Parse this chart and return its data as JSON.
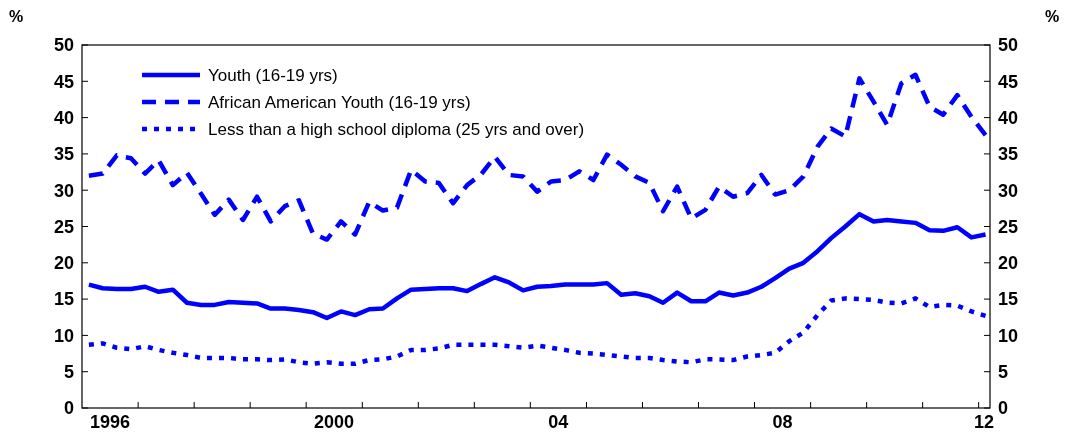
{
  "chart_data": {
    "type": "line",
    "x": [
      "1996-02-15",
      "1996-05-15",
      "1996-08-15",
      "1996-11-15",
      "1997-02-15",
      "1997-05-15",
      "1997-08-15",
      "1997-11-15",
      "1998-02-15",
      "1998-05-15",
      "1998-08-15",
      "1998-11-15",
      "1999-02-15",
      "1999-05-15",
      "1999-08-15",
      "1999-11-15",
      "2000-02-15",
      "2000-05-15",
      "2000-08-15",
      "2000-11-15",
      "2001-02-15",
      "2001-05-15",
      "2001-08-15",
      "2001-11-15",
      "2002-02-15",
      "2002-05-15",
      "2002-08-15",
      "2002-11-15",
      "2003-02-15",
      "2003-05-15",
      "2003-08-15",
      "2003-11-15",
      "2004-02-15",
      "2004-05-15",
      "2004-08-15",
      "2004-11-15",
      "2005-02-15",
      "2005-05-15",
      "2005-08-15",
      "2005-11-15",
      "2006-02-15",
      "2006-05-15",
      "2006-08-15",
      "2006-11-15",
      "2007-02-15",
      "2007-05-15",
      "2007-08-15",
      "2007-11-15",
      "2008-02-15",
      "2008-05-15",
      "2008-08-15",
      "2008-11-15",
      "2009-02-15",
      "2009-05-15",
      "2009-08-15",
      "2009-11-15",
      "2010-02-15",
      "2010-05-15",
      "2010-08-15",
      "2010-11-15",
      "2011-02-15",
      "2011-05-15",
      "2011-08-15",
      "2011-11-15",
      "2012-02-15"
    ],
    "series": [
      {
        "name": "Youth (16-19 yrs)",
        "color": "#0000ff",
        "line_style": "solid",
        "values": [
          17.0,
          16.5,
          16.4,
          16.4,
          16.7,
          16.0,
          16.3,
          14.5,
          14.2,
          14.2,
          14.6,
          14.5,
          14.4,
          13.7,
          13.7,
          13.5,
          13.2,
          12.4,
          13.3,
          12.8,
          13.6,
          13.7,
          15.1,
          16.3,
          16.4,
          16.5,
          16.5,
          16.1,
          17.1,
          18.0,
          17.3,
          16.2,
          16.7,
          16.8,
          17.0,
          17.0,
          17.0,
          17.2,
          15.6,
          15.8,
          15.4,
          14.5,
          15.9,
          14.7,
          14.7,
          15.9,
          15.5,
          15.9,
          16.7,
          17.9,
          19.2,
          20.0,
          21.6,
          23.4,
          25.0,
          26.7,
          25.7,
          25.9,
          25.7,
          25.5,
          24.5,
          24.4,
          24.9,
          23.5,
          23.9
        ]
      },
      {
        "name": "African American Youth (16-19 yrs)",
        "color": "#0000ff",
        "line_style": "dashed",
        "values": [
          32.0,
          32.3,
          34.8,
          34.4,
          32.3,
          34.1,
          30.7,
          32.4,
          29.5,
          26.6,
          28.7,
          25.9,
          29.1,
          25.7,
          27.8,
          28.6,
          24.0,
          23.2,
          25.7,
          23.9,
          28.4,
          27.2,
          27.6,
          32.8,
          31.2,
          31.0,
          28.2,
          30.7,
          32.2,
          34.6,
          32.1,
          31.9,
          29.8,
          31.2,
          31.4,
          32.6,
          31.4,
          34.9,
          33.5,
          31.9,
          31.0,
          27.1,
          30.5,
          26.1,
          27.3,
          30.5,
          29.1,
          29.6,
          32.1,
          29.4,
          30.0,
          31.9,
          36.0,
          38.5,
          37.4,
          45.4,
          42.2,
          39.0,
          44.7,
          45.9,
          41.5,
          40.4,
          43.1,
          40.1,
          37.6
        ]
      },
      {
        "name": "Less than a high school diploma (25 yrs and over)",
        "color": "#0000ff",
        "line_style": "dotted",
        "values": [
          8.7,
          8.9,
          8.3,
          8.1,
          8.5,
          8.0,
          7.6,
          7.3,
          6.9,
          6.9,
          6.9,
          6.7,
          6.7,
          6.6,
          6.7,
          6.3,
          6.1,
          6.3,
          6.1,
          6.1,
          6.6,
          6.7,
          7.1,
          8.0,
          8.0,
          8.2,
          8.7,
          8.7,
          8.7,
          8.7,
          8.5,
          8.3,
          8.6,
          8.3,
          8.0,
          7.6,
          7.5,
          7.3,
          7.1,
          6.9,
          6.9,
          6.6,
          6.4,
          6.3,
          6.7,
          6.7,
          6.6,
          7.1,
          7.3,
          7.6,
          9.2,
          10.4,
          12.8,
          14.8,
          15.1,
          15.0,
          14.9,
          14.5,
          14.4,
          15.1,
          13.9,
          14.2,
          14.1,
          13.3,
          12.7
        ]
      }
    ],
    "ylabel": "%",
    "y2label": "%",
    "xlim": [
      "1996-01-01",
      "2012-03-15"
    ],
    "xticks": [
      {
        "value": "1996-07-01",
        "label": "1996"
      },
      {
        "value": "1997",
        "label": null
      },
      {
        "value": "1998",
        "label": null
      },
      {
        "value": "1999",
        "label": null
      },
      {
        "value": "2000",
        "label": null
      },
      {
        "value": "2000-07-01",
        "label": "2000"
      },
      {
        "value": "2001",
        "label": null
      },
      {
        "value": "2002",
        "label": null
      },
      {
        "value": "2003",
        "label": null
      },
      {
        "value": "2004",
        "label": null
      },
      {
        "value": "2004-07-01",
        "label": "04"
      },
      {
        "value": "2005",
        "label": null
      },
      {
        "value": "2006",
        "label": null
      },
      {
        "value": "2007",
        "label": null
      },
      {
        "value": "2008",
        "label": null
      },
      {
        "value": "2008-07-01",
        "label": "08"
      },
      {
        "value": "2009",
        "label": null
      },
      {
        "value": "2010",
        "label": null
      },
      {
        "value": "2011",
        "label": null
      },
      {
        "value": "2012",
        "label": null
      },
      {
        "value": "2012-02-05",
        "label": "12"
      }
    ],
    "ylim": [
      0,
      50
    ],
    "yticks": [
      0,
      5,
      10,
      15,
      20,
      25,
      30,
      35,
      40,
      45,
      50
    ],
    "y2lim": [
      0,
      50
    ],
    "y2ticks": [
      0,
      5,
      10,
      15,
      20,
      25,
      30,
      35,
      40,
      45,
      50
    ],
    "legend": "top left",
    "grid": false
  }
}
